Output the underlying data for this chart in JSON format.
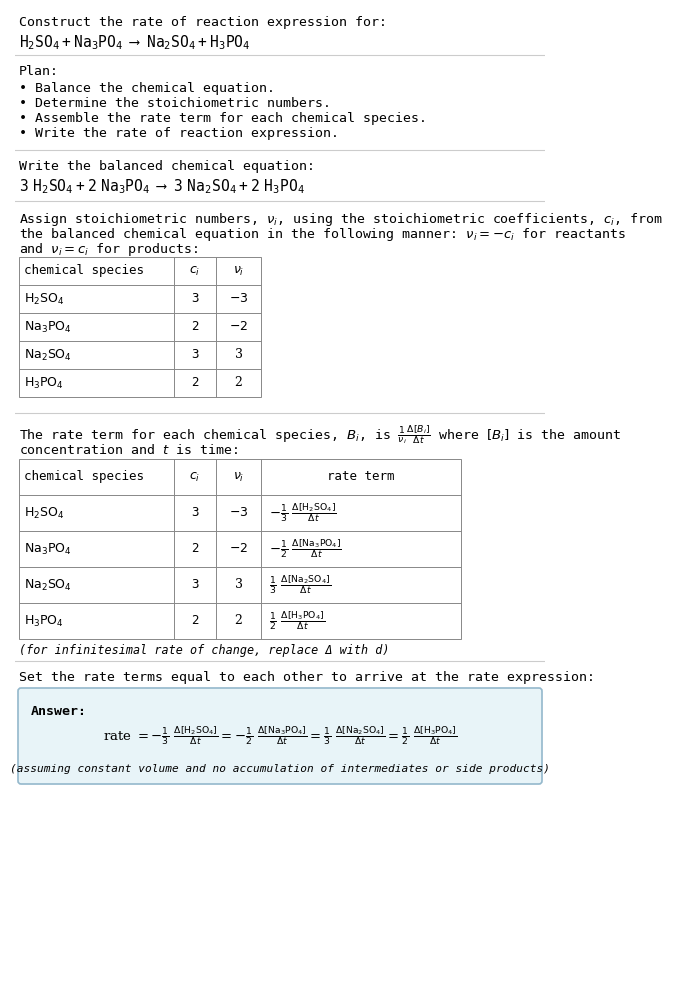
{
  "bg_color": "#ffffff",
  "text_color": "#000000",
  "title_line1": "Construct the rate of reaction expression for:",
  "plan_header": "Plan:",
  "plan_items": [
    "• Balance the chemical equation.",
    "• Determine the stoichiometric numbers.",
    "• Assemble the rate term for each chemical species.",
    "• Write the rate of reaction expression."
  ],
  "balanced_header": "Write the balanced chemical equation:",
  "stoich_intro_line1": "Assign stoichiometric numbers, ν_i, using the stoichiometric coefficients, c_i, from",
  "stoich_intro_line2": "the balanced chemical equation in the following manner: ν_i = −c_i for reactants",
  "stoich_intro_line3": "and ν_i = c_i for products:",
  "rate_intro_line1": "The rate term for each chemical species, B_i, is  (1/ν_i)(Δ[B_i]/Δt)  where [B_i] is the amount",
  "rate_intro_line2": "concentration and t is time:",
  "infinitesimal_note": "(for infinitesimal rate of change, replace Δ with d)",
  "set_equal_text": "Set the rate terms equal to each other to arrive at the rate expression:",
  "answer_label": "Answer:",
  "answer_box_color": "#e8f4f8",
  "answer_box_border": "#94b8cc",
  "assuming_note": "(assuming constant volume and no accumulation of intermediates or side products)",
  "font_size": 9.5,
  "table_line_color": "#888888",
  "line_color": "#cccccc"
}
